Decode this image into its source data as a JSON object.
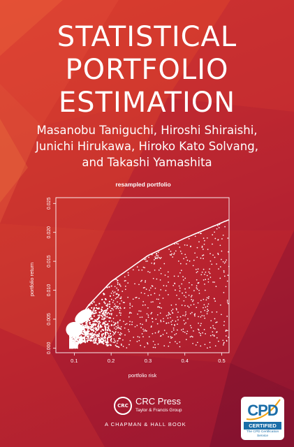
{
  "book": {
    "title_lines": [
      "STATISTICAL",
      "PORTFOLIO",
      "ESTIMATION"
    ],
    "author_lines": [
      "Masanobu Taniguchi, Hiroshi Shiraishi,",
      "Junichi Hirukawa, Hiroko Kato Solvang,",
      "and Takashi Yamashita"
    ]
  },
  "chart_data": {
    "type": "scatter",
    "title": "resampled portfolio",
    "xlabel": "portfolio risk",
    "ylabel": "portfolio return",
    "xlim": [
      0.05,
      0.52
    ],
    "ylim": [
      -0.0008,
      0.026
    ],
    "x_ticks": [
      "0.1",
      "0.2",
      "0.3",
      "0.4",
      "0.5"
    ],
    "y_ticks": [
      "0.000",
      "0.005",
      "0.010",
      "0.015",
      "0.020",
      "0.025"
    ],
    "frontier": {
      "description_points": [
        [
          0.095,
          0.0035
        ],
        [
          0.14,
          0.0075
        ],
        [
          0.2,
          0.0115
        ],
        [
          0.3,
          0.016
        ],
        [
          0.4,
          0.019
        ],
        [
          0.52,
          0.0222
        ]
      ]
    },
    "cloud": {
      "min_risk": 0.088,
      "max_risk": 0.52,
      "min_return": 0.0,
      "point_count": 1500
    },
    "grid": false
  },
  "publisher": {
    "logo_text": "CRC",
    "name": "CRC Press",
    "group": "Taylor & Francis Group",
    "imprint": "A CHAPMAN & HALL BOOK"
  },
  "badge": {
    "mark": "CPD",
    "certified": "CERTIFIED",
    "service_lines": [
      "The CPD Certification",
      "Service"
    ]
  },
  "colors": {
    "background": "#c52a2c",
    "text": "#ffffff",
    "badge_blue": "#1b6ea8"
  }
}
